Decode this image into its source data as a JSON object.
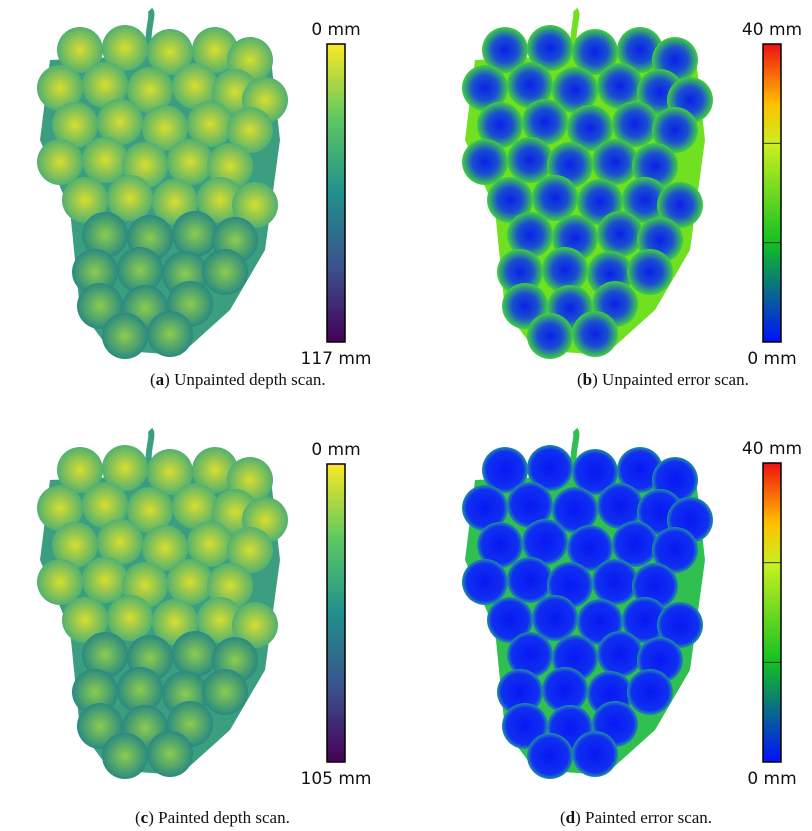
{
  "panels": [
    {
      "caption": [
        "(",
        "a",
        ") Unpainted depth scan."
      ],
      "colorbar": {
        "top": "0 mm",
        "bottom": "117 mm"
      }
    },
    {
      "caption": [
        "(",
        "b",
        ") Unpainted error scan."
      ],
      "colorbar": {
        "top": "40 mm",
        "bottom": "0 mm"
      }
    },
    {
      "caption": [
        "(",
        "c",
        ") Painted depth scan."
      ],
      "colorbar": {
        "top": "0 mm",
        "bottom": "105 mm"
      }
    },
    {
      "caption": [
        "(",
        "d",
        ") Painted error scan."
      ],
      "colorbar": {
        "top": "40 mm",
        "bottom": "0 mm"
      }
    }
  ]
}
